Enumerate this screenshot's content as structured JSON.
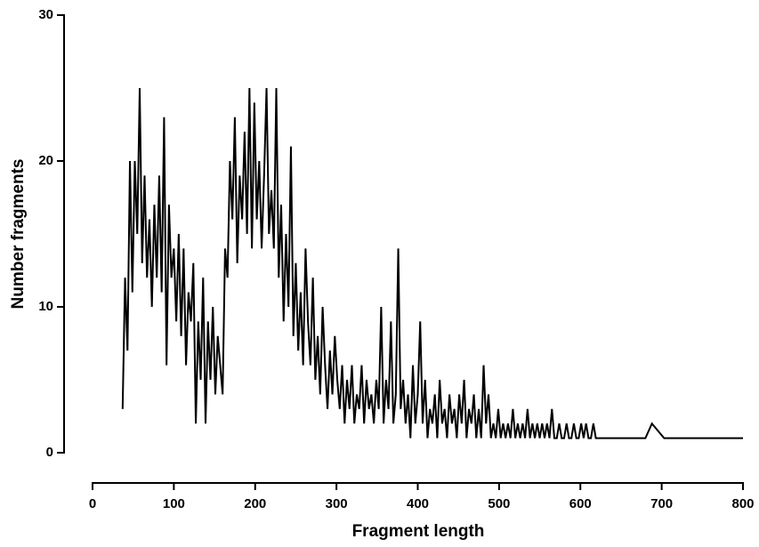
{
  "chart_data": {
    "type": "line",
    "x_label": "Fragment length",
    "y_label": "Number fragments",
    "xlim": [
      0,
      800
    ],
    "xticks": [
      0,
      100,
      200,
      300,
      400,
      500,
      600,
      700,
      800
    ],
    "ylim": [
      0,
      30
    ],
    "yticks": [
      0,
      10,
      20,
      30
    ],
    "color": "#000000",
    "x": [
      37,
      40,
      43,
      46,
      49,
      52,
      55,
      58,
      61,
      64,
      67,
      70,
      73,
      76,
      79,
      82,
      85,
      88,
      91,
      94,
      97,
      100,
      103,
      106,
      109,
      112,
      115,
      118,
      121,
      124,
      127,
      130,
      133,
      136,
      139,
      142,
      145,
      148,
      151,
      154,
      157,
      160,
      163,
      166,
      169,
      172,
      175,
      178,
      181,
      184,
      187,
      190,
      193,
      196,
      199,
      202,
      205,
      208,
      211,
      214,
      217,
      220,
      223,
      226,
      229,
      232,
      235,
      238,
      241,
      244,
      247,
      250,
      253,
      256,
      259,
      262,
      265,
      268,
      271,
      274,
      277,
      280,
      283,
      286,
      289,
      292,
      295,
      298,
      301,
      304,
      307,
      310,
      313,
      316,
      319,
      322,
      325,
      328,
      331,
      334,
      337,
      340,
      343,
      346,
      349,
      352,
      355,
      358,
      361,
      364,
      367,
      370,
      373,
      376,
      379,
      382,
      385,
      388,
      391,
      394,
      397,
      400,
      403,
      406,
      409,
      412,
      415,
      418,
      421,
      424,
      427,
      430,
      433,
      436,
      439,
      442,
      445,
      448,
      451,
      454,
      457,
      460,
      463,
      466,
      469,
      472,
      475,
      478,
      481,
      484,
      487,
      490,
      493,
      496,
      499,
      502,
      505,
      508,
      511,
      514,
      517,
      520,
      523,
      526,
      529,
      532,
      535,
      538,
      541,
      544,
      547,
      550,
      553,
      556,
      559,
      562,
      565,
      568,
      571,
      574,
      577,
      580,
      583,
      586,
      589,
      592,
      595,
      598,
      601,
      604,
      607,
      610,
      613,
      616,
      619,
      680,
      688,
      703,
      800
    ],
    "values": [
      3,
      12,
      7,
      20,
      11,
      20,
      15,
      25,
      13,
      19,
      12,
      16,
      10,
      17,
      12,
      19,
      11,
      23,
      6,
      17,
      12,
      14,
      9,
      15,
      8,
      14,
      6,
      11,
      9,
      13,
      2,
      9,
      5,
      12,
      2,
      9,
      5,
      10,
      4,
      8,
      6,
      4,
      14,
      12,
      20,
      16,
      23,
      13,
      19,
      16,
      22,
      15,
      25,
      14,
      24,
      16,
      20,
      14,
      19,
      25,
      15,
      18,
      14,
      25,
      12,
      17,
      9,
      15,
      10,
      21,
      8,
      13,
      7,
      11,
      6,
      14,
      9,
      6,
      12,
      5,
      8,
      4,
      10,
      6,
      3,
      7,
      4,
      8,
      5,
      3,
      6,
      2,
      5,
      3,
      6,
      2,
      4,
      3,
      6,
      2,
      5,
      3,
      4,
      2,
      5,
      3,
      10,
      2,
      5,
      3,
      9,
      2,
      4,
      14,
      3,
      5,
      2,
      4,
      1,
      6,
      2,
      4,
      9,
      2,
      5,
      1,
      3,
      2,
      4,
      1,
      5,
      2,
      3,
      1,
      4,
      2,
      3,
      1,
      4,
      2,
      5,
      1,
      3,
      2,
      4,
      1,
      3,
      1,
      6,
      2,
      4,
      1,
      2,
      1,
      3,
      1,
      2,
      1,
      2,
      1,
      3,
      1,
      2,
      1,
      2,
      1,
      3,
      1,
      2,
      1,
      2,
      1,
      2,
      1,
      2,
      1,
      3,
      1,
      1,
      2,
      1,
      1,
      2,
      1,
      1,
      2,
      1,
      1,
      2,
      1,
      2,
      1,
      1,
      2,
      1,
      1,
      2,
      1,
      1
    ]
  }
}
